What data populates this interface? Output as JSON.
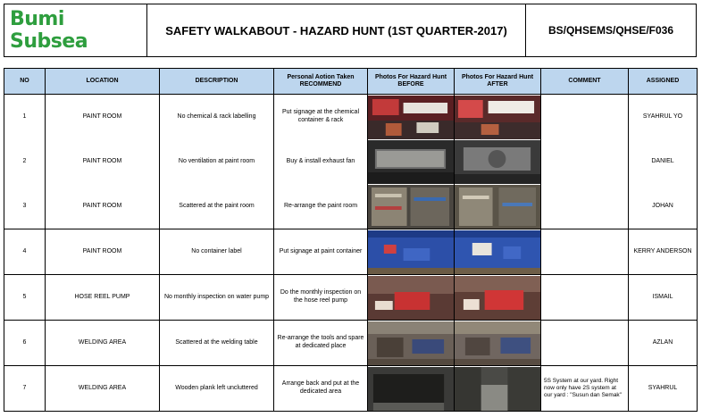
{
  "header": {
    "logo": "Bumi Subsea",
    "title": "SAFETY WALKABOUT - HAZARD HUNT (1ST QUARTER-2017)",
    "doc_code": "BS/QHSEMS/QHSE/F036"
  },
  "columns": [
    "NO",
    "LOCATION",
    "DESCRIPTION",
    "Personal Aotion Taken RECOMMEND",
    "Photos For Hazard Hunt BEFORE",
    "Photos For Hazard Hunt AFTER",
    "COMMENT",
    "ASSIGNED"
  ],
  "rows": [
    {
      "no": "1",
      "location": "PAINT ROOM",
      "description": "No chemical & rack labelling",
      "action": "Put signage at the chemical container & rack",
      "comment": "",
      "assigned": "SYAHRUL YO"
    },
    {
      "no": "2",
      "location": "PAINT ROOM",
      "description": "No ventilation at paint room",
      "action": "Buy & install exhaust fan",
      "comment": "",
      "assigned": "DANIEL"
    },
    {
      "no": "3",
      "location": "PAINT ROOM",
      "description": "Scattered at the paint room",
      "action": "Re-arrange the paint room",
      "comment": "",
      "assigned": "JOHAN"
    },
    {
      "no": "4",
      "location": "PAINT ROOM",
      "description": "No container label",
      "action": "Put signage at paint container",
      "comment": "",
      "assigned": "KERRY ANDERSON"
    },
    {
      "no": "5",
      "location": "HOSE REEL PUMP",
      "description": "No monthly inspection on water pump",
      "action": "Do the monthly inspection on the hose reel pump",
      "comment": "",
      "assigned": "ISMAIL"
    },
    {
      "no": "6",
      "location": "WELDING AREA",
      "description": "Scattered at the welding table",
      "action": "Re-arrange the tools and spare at dedicated place",
      "comment": "",
      "assigned": "AZLAN"
    },
    {
      "no": "7",
      "location": "WELDING AREA",
      "description": "Wooden plank left uncluttered",
      "action": "Arrange back and put at the dedicated area",
      "comment": "5S System at our yard. Right now only have 2S system at our yard : \"Susun dan Semak\"",
      "assigned": "SYAHRUL"
    }
  ]
}
